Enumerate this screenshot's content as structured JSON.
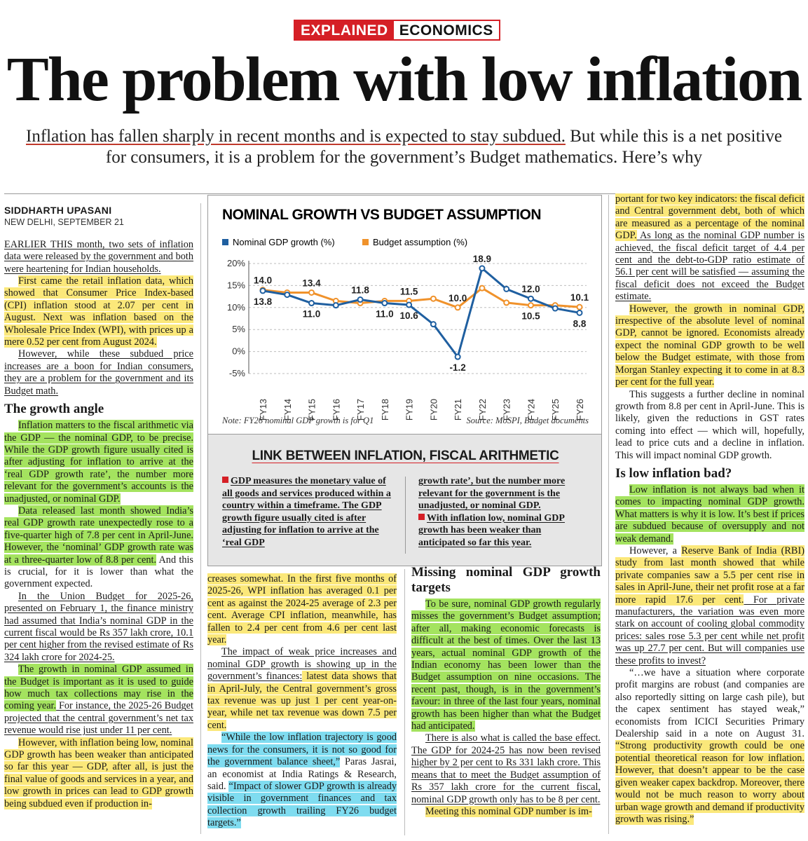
{
  "kicker": {
    "left": "EXPLAINED",
    "right": "ECONOMICS"
  },
  "headline": "The problem with low inflation",
  "deck": {
    "part1": "Inflation has fallen sharply in recent months and is expected to stay subdued.",
    "part2": " But while this is a net positive for consumers, it is a problem for the government’s Budget mathematics. Here’s why"
  },
  "byline": {
    "author": "SIDDHARTH UPASANI",
    "dateline": "NEW DELHI, SEPTEMBER 21"
  },
  "chart_data": {
    "type": "line",
    "title": "NOMINAL GROWTH VS BUDGET ASSUMPTION",
    "categories": [
      "FY13",
      "FY14",
      "FY15",
      "FY16",
      "FY17",
      "FY18",
      "FY19",
      "FY20",
      "FY21",
      "FY22",
      "FY23",
      "FY24",
      "FY25",
      "FY26"
    ],
    "series": [
      {
        "name": "Nominal GDP growth (%)",
        "color": "#1f5fa0",
        "values": [
          13.8,
          12.9,
          11.0,
          10.5,
          11.8,
          11.0,
          10.6,
          6.2,
          -1.2,
          18.9,
          14.2,
          12.0,
          9.8,
          8.8
        ]
      },
      {
        "name": "Budget assumption (%)",
        "color": "#f0922b",
        "values": [
          14.0,
          13.4,
          13.4,
          11.5,
          11.0,
          11.5,
          11.5,
          12.0,
          10.0,
          14.4,
          11.1,
          10.5,
          10.5,
          10.1
        ]
      }
    ],
    "data_labels_top": [
      "14.0",
      "13.4",
      "11.8",
      "11.5",
      "10.0",
      "18.9",
      "12.0",
      "10.1"
    ],
    "data_labels_bottom": [
      "13.8",
      "11.0",
      "11.0",
      "10.6",
      "-1.2",
      "10.5",
      "8.8"
    ],
    "yticks": [
      "20%",
      "15%",
      "10%",
      "5%",
      "0%",
      "-5%"
    ],
    "ylim": [
      -5,
      20
    ],
    "grid": true,
    "legend": "top",
    "note": "Note: FY26 nominal GDP growth is for Q1",
    "source": "Source: MoSPI, Budget documents"
  },
  "linkbox": {
    "title": "LINK BETWEEN INFLATION, FISCAL ARITHMETIC",
    "col1": "GDP measures the monetary value of all goods and services produced within a country within a timeframe. The GDP growth figure usually cited is after adjusting for inflation to arrive at the ‘real GDP",
    "col2a": "growth rate’, but the number more relevant for the government is the unadjusted, or nominal GDP.",
    "col2b": "With inflation low, nominal GDP growth has been weaker than anticipated so far this year."
  },
  "col1": {
    "p1": "EARLIER THIS month, two sets of inflation data were released by the government and both were heartening for Indian households.",
    "p2": "First came the retail inflation data, which showed that Consumer Price Index-based (CPI) inflation stood at 2.07 per cent in August. Next was inflation based on the Wholesale Price Index (WPI), with prices up a mere 0.52 per cent from August 2024.",
    "p3": "However, while these subdued price increases are a boon for Indian consumers, they are a problem for the government and its Budget math.",
    "h1": "The growth angle",
    "p4": "Inflation matters to the fiscal arithmetic via the GDP — the nominal GDP, to be precise. While the GDP growth figure usually cited is after adjusting for inflation to arrive at the ‘real GDP growth rate’, the number more relevant for the government’s accounts is the unadjusted, or nominal GDP.",
    "p5a": "Data released last month showed India’s real GDP growth rate unexpectedly rose to a five-quarter high of 7.8 per cent in April-June. However, the ‘nominal’ GDP growth rate was at a three-quarter low of 8.8 per cent.",
    "p5b": " And this is crucial, for it is lower than what the government expected.",
    "p6": "In the Union Budget for 2025-26, presented on February 1, the finance ministry had assumed that India’s nominal GDP in the current fiscal would be Rs 357 lakh crore, 10.1 per cent higher from the revised estimate of Rs 324 lakh crore for 2024-25.",
    "p7a": "The growth in nominal GDP assumed in the Budget is important as it is used to guide how much tax collections may rise in the coming year.",
    "p7b": " For instance, the 2025-26 Budget projected that the central government’s net tax revenue would rise just under 11 per cent.",
    "p8": "However, with inflation being low, nominal GDP growth has been weaker than anticipated so far this year — GDP, after all, is just the final value of goods and services in a year, and low growth in prices can lead to GDP growth being subdued even if production in-"
  },
  "col2": {
    "p1": "creases somewhat. In the first five months of 2025-26, WPI inflation has averaged 0.1 per cent as against the 2024-25 average of 2.3 per cent. Average CPI inflation, meanwhile, has fallen to 2.4 per cent from 4.6 per cent last year.",
    "p2a": "The impact of weak price increases and nominal GDP growth is showing up in the government’s finances:",
    "p2b": " latest data shows that in April-July, the Central government’s gross tax revenue was up just 1 per cent year-on-year, while net tax revenue was down 7.5 per cent.",
    "p3a": "“While the low inflation trajectory is good news for the consumers, it is not so good for the government balance sheet,”",
    "p3b": " Paras Jasrai, an economist at India Ratings & Research, said. ",
    "p3c": "“Impact of slower GDP growth is already visible in government finances and tax collection growth trailing FY26 budget targets.”"
  },
  "col3": {
    "h1": "Missing nominal GDP growth targets",
    "p1": "To be sure, nominal GDP growth regularly misses the government’s Budget assumption; after all, making economic forecasts is difficult at the best of times. Over the last 13 years, actual nominal GDP growth of the Indian economy has been lower than the Budget assumption on nine occasions. The recent past, though, is in the government’s favour: in three of the last four years, nominal growth has been higher than what the Budget had anticipated.",
    "p2": "There is also what is called the base effect. The GDP for 2024-25 has now been revised higher by 2 per cent to Rs 331 lakh crore. This means that to meet the Budget assumption of Rs 357 lakh crore for the current fiscal, nominal GDP growth only has to be 8 per cent.",
    "p3": "Meeting this nominal GDP number is im-"
  },
  "col4": {
    "p1a": "portant for two key indicators: the fiscal deficit and Central government debt, both of which are measured as a percentage of the nominal GDP.",
    "p1b": " As long as the nominal GDP number is achieved, the fiscal deficit target of 4.4 per cent and the debt-to-GDP ratio estimate of 56.1 per cent will be satisfied — assuming the fiscal deficit does not exceed the Budget estimate.",
    "p2": "However, the growth in nominal GDP, irrespective of the absolute level of nominal GDP, cannot be ignored. Economists already expect the nominal GDP growth to be well below the Budget estimate, with those from Morgan Stanley expecting it to come in at 8.3 per cent for the full year.",
    "p3": "This suggests a further decline in nominal growth from 8.8 per cent in April-June. This is likely, given the reductions in GST rates coming into effect — which will, hopefully, lead to price cuts and a decline in inflation. This will impact nominal GDP growth.",
    "h1": "Is low inflation bad?",
    "p4": "Low inflation is not always bad when it comes to impacting nominal GDP growth. What matters is why it is low. It’s best if prices are subdued because of oversupply and not weak demand.",
    "p5a": "However, a ",
    "p5b": "Reserve Bank of India (RBI) study from last month showed that while private companies saw a 5.5 per cent rise in sales in April-June, their net profit rose at a far more rapid 17.6 per cent.",
    "p5c": " For private manufacturers, the variation was even more stark on account of cooling global commodity prices: sales rose 5.3 per cent while net profit was up 27.7 per cent. But will companies use these profits to invest?",
    "p6a": "“…we have a situation where corporate profit margins are robust (and companies are also reportedly sitting on large cash pile), but the capex sentiment has stayed weak,” economists from ICICI Securities Primary Dealership said in a note on August 31. ",
    "p6b": "“Strong productivity growth could be one potential theoretical reason for low inflation. However, that doesn’t appear to be the case given weaker capex backdrop. Moreover, there would not be much reason to worry about urban wage growth and demand if productivity growth was rising.”"
  }
}
